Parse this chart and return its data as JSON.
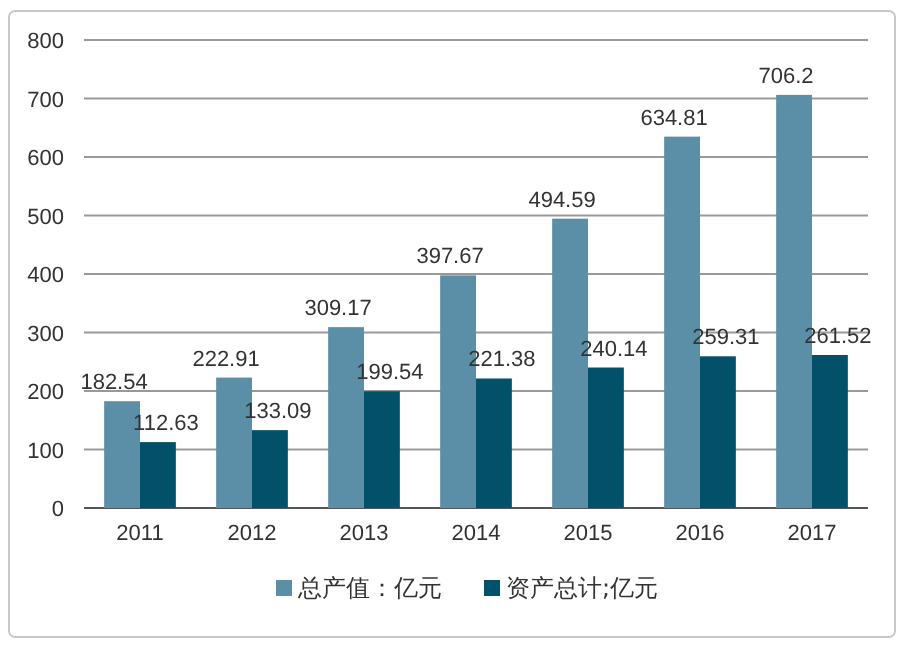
{
  "chart_data": {
    "type": "bar",
    "categories": [
      "2011",
      "2012",
      "2013",
      "2014",
      "2015",
      "2016",
      "2017"
    ],
    "series": [
      {
        "name": "总产值：亿元",
        "color": "#5b8fa7",
        "values": [
          182.54,
          222.91,
          309.17,
          397.67,
          494.59,
          634.81,
          706.2
        ]
      },
      {
        "name": "资产总计;亿元",
        "color": "#02506a",
        "values": [
          112.63,
          133.09,
          199.54,
          221.38,
          240.14,
          259.31,
          261.52
        ]
      }
    ],
    "ylim": [
      0,
      800
    ],
    "yticks": [
      0,
      100,
      200,
      300,
      400,
      500,
      600,
      700,
      800
    ],
    "grid": "y",
    "legend": "bottom",
    "data_labels": true
  }
}
